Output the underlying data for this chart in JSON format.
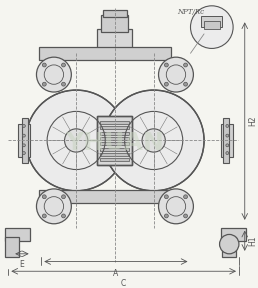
{
  "bg_color": "#f5f5f0",
  "line_color": "#555555",
  "dashed_color": "#888888",
  "watermark_color": "#c8d4c0",
  "title": "",
  "npt_label": "NPT/Rc",
  "dim_labels": [
    "E",
    "A",
    "C",
    "H2",
    "H1"
  ],
  "fig_width": 2.58,
  "fig_height": 2.88,
  "dpi": 100
}
